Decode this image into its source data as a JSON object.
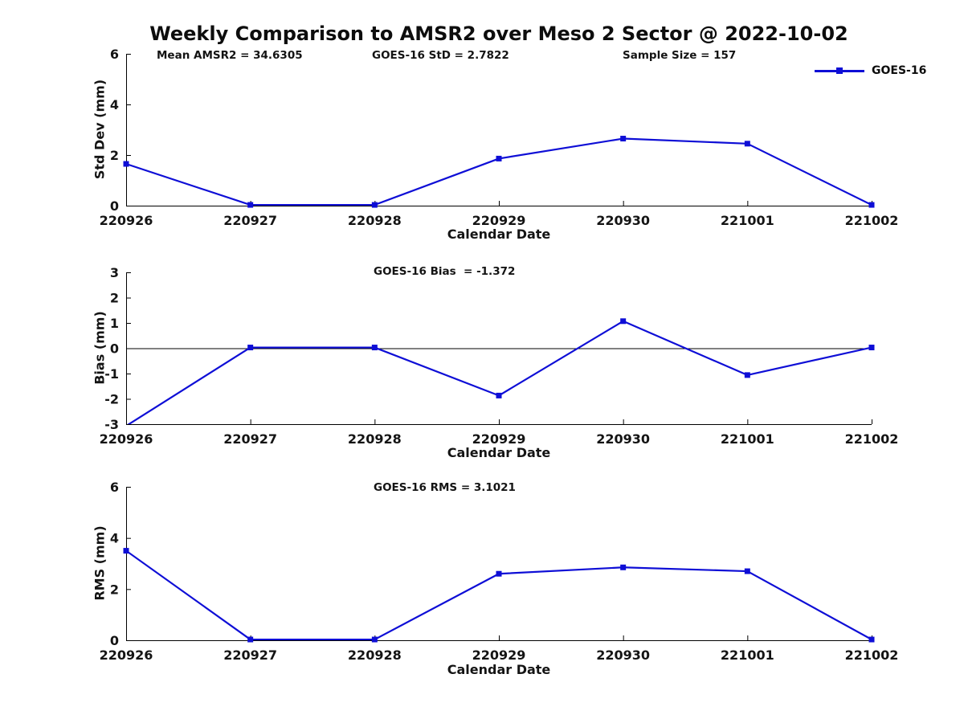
{
  "title": "Weekly Comparison to AMSR2 over Meso 2 Sector @ 2022-10-02",
  "legend": {
    "label": "GOES-16"
  },
  "colors": {
    "line": "#0E0ED6",
    "axis": "#000000",
    "text": "#141414"
  },
  "chart_data": [
    {
      "type": "line",
      "name": "std-dev-vs-date",
      "ylabel": "Std Dev (mm)",
      "xlabel": "Calendar Date",
      "ylim": [
        0,
        6
      ],
      "yticks": [
        0,
        2,
        4,
        6
      ],
      "grid": false,
      "zero_line": false,
      "categories": [
        "220926",
        "220927",
        "220928",
        "220929",
        "220930",
        "221001",
        "221002"
      ],
      "series": [
        {
          "name": "GOES-16",
          "values": [
            1.65,
            0.03,
            0.03,
            1.86,
            2.65,
            2.45,
            0.03
          ]
        }
      ],
      "annotations": [
        {
          "text": "Mean AMSR2 = 34.6305"
        },
        {
          "text": "GOES-16 StD = 2.7822"
        },
        {
          "text": "Sample Size = 157"
        }
      ]
    },
    {
      "type": "line",
      "name": "bias-vs-date",
      "ylabel": "Bias (mm)",
      "xlabel": "Calendar Date",
      "ylim": [
        -3,
        3
      ],
      "yticks": [
        -3,
        -2,
        -1,
        0,
        1,
        2,
        3
      ],
      "grid": false,
      "zero_line": true,
      "categories": [
        "220926",
        "220927",
        "220928",
        "220929",
        "220930",
        "221001",
        "221002"
      ],
      "series": [
        {
          "name": "GOES-16",
          "values": [
            -3.07,
            0.03,
            0.03,
            -1.87,
            1.07,
            -1.06,
            0.03
          ]
        }
      ],
      "annotations": [
        {
          "text": "GOES-16 Bias  = -1.372"
        }
      ]
    },
    {
      "type": "line",
      "name": "rms-vs-date",
      "ylabel": "RMS (mm)",
      "xlabel": "Calendar Date",
      "ylim": [
        0,
        6
      ],
      "yticks": [
        0,
        2,
        4,
        6
      ],
      "grid": false,
      "zero_line": false,
      "categories": [
        "220926",
        "220927",
        "220928",
        "220929",
        "220930",
        "221001",
        "221002"
      ],
      "series": [
        {
          "name": "GOES-16",
          "values": [
            3.5,
            0.03,
            0.03,
            2.6,
            2.85,
            2.7,
            0.03
          ]
        }
      ],
      "annotations": [
        {
          "text": "GOES-16 RMS = 3.1021"
        }
      ]
    }
  ]
}
